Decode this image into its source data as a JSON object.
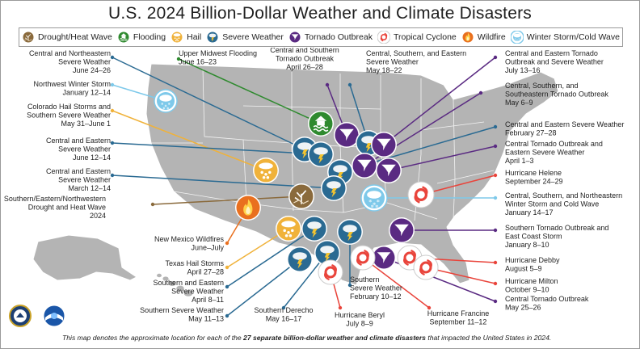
{
  "title": "U.S. 2024 Billion-Dollar Weather and Climate Disasters",
  "colors": {
    "drought": "#8a6a3c",
    "flooding": "#2f8a2f",
    "hail": "#f0b23a",
    "severe": "#2a6a92",
    "tornado": "#5a2a82",
    "cyclone": "#e9443b",
    "wildfire": "#e9701f",
    "winter": "#7ec9ea",
    "land": "#b4b4b4"
  },
  "legend": [
    {
      "label": "Drought/Heat Wave",
      "icon": "drought-icon",
      "color": "#8a6a3c"
    },
    {
      "label": "Flooding",
      "icon": "flooding-icon",
      "color": "#2f8a2f"
    },
    {
      "label": "Hail",
      "icon": "hail-icon",
      "color": "#f0b23a"
    },
    {
      "label": "Severe Weather",
      "icon": "severe-weather-icon",
      "color": "#2a6a92"
    },
    {
      "label": "Tornado Outbreak",
      "icon": "tornado-icon",
      "color": "#5a2a82"
    },
    {
      "label": "Tropical Cyclone",
      "icon": "cyclone-icon",
      "color": "#e9443b"
    },
    {
      "label": "Wildfire",
      "icon": "wildfire-icon",
      "color": "#e9701f"
    },
    {
      "label": "Winter Storm/Cold Wave",
      "icon": "winter-storm-icon",
      "color": "#7ec9ea"
    }
  ],
  "events": [
    {
      "label": "Central and Northeastern\nSevere Weather\nJune 24–26",
      "type": "severe"
    },
    {
      "label": "Upper Midwest Flooding\nJune 16–23",
      "type": "flooding"
    },
    {
      "label": "Central and Southern\nTornado Outbreak\nApril 26–28",
      "type": "tornado"
    },
    {
      "label": "Central, Southern, and Eastern\nSevere Weather\nMay 18–22",
      "type": "severe"
    },
    {
      "label": "Central and Eastern Tornado\nOutbreak and Severe Weather\nJuly 13–16",
      "type": "tornado"
    },
    {
      "label": "Northwest Winter Storm\nJanuary 12–14",
      "type": "winter"
    },
    {
      "label": "Central, Southern, and\nSoutheastern Tornado Outbreak\nMay 6–9",
      "type": "tornado"
    },
    {
      "label": "Colorado Hail Storms and\nSouthern Severe Weather\nMay 31–June 1",
      "type": "hail"
    },
    {
      "label": "Central and Eastern Severe Weather\nFebruary 27–28",
      "type": "severe"
    },
    {
      "label": "Central and Eastern\nSevere Weather\nJune 12–14",
      "type": "severe"
    },
    {
      "label": "Central Tornado Outbreak and\nEastern Severe Weather\nApril 1–3",
      "type": "tornado"
    },
    {
      "label": "Central and Eastern\nSevere Weather\nMarch 12–14",
      "type": "severe"
    },
    {
      "label": "Hurricane Helene\nSeptember 24–29",
      "type": "cyclone"
    },
    {
      "label": "Southern/Eastern/Northwestern\nDrought and Heat Wave\n2024",
      "type": "drought"
    },
    {
      "label": "Central, Southern, and Northeastern\nWinter Storm and Cold Wave\nJanuary 14–17",
      "type": "winter"
    },
    {
      "label": "Southern Tornado Outbreak and\nEast Coast Storm\nJanuary 8–10",
      "type": "tornado"
    },
    {
      "label": "New Mexico Wildfires\nJune–July",
      "type": "wildfire"
    },
    {
      "label": "Texas Hail Storms\nApril 27–28",
      "type": "hail"
    },
    {
      "label": "Hurricane Debby\nAugust 5–9",
      "type": "cyclone"
    },
    {
      "label": "Hurricane Milton\nOctober 9–10",
      "type": "cyclone"
    },
    {
      "label": "Southern and Eastern\nSevere Weather\nApril 8–11",
      "type": "severe"
    },
    {
      "label": "Southern\nSevere Weather\nFebruary 10–12",
      "type": "severe"
    },
    {
      "label": "Central Tornado Outbreak\nMay 25–26",
      "type": "tornado"
    },
    {
      "label": "Southern Severe Weather\nMay 11–13",
      "type": "severe"
    },
    {
      "label": "Southern Derecho\nMay 16–17",
      "type": "severe"
    },
    {
      "label": "Hurricane Beryl\nJuly 8–9",
      "type": "cyclone"
    },
    {
      "label": "Hurricane Francine\nSeptember 11–12",
      "type": "cyclone"
    }
  ],
  "footer": {
    "pre": "This map denotes the approximate location for each of the ",
    "bold": "27 separate billion-dollar weather and climate disasters",
    "post": " that impacted the United States in 2024."
  }
}
